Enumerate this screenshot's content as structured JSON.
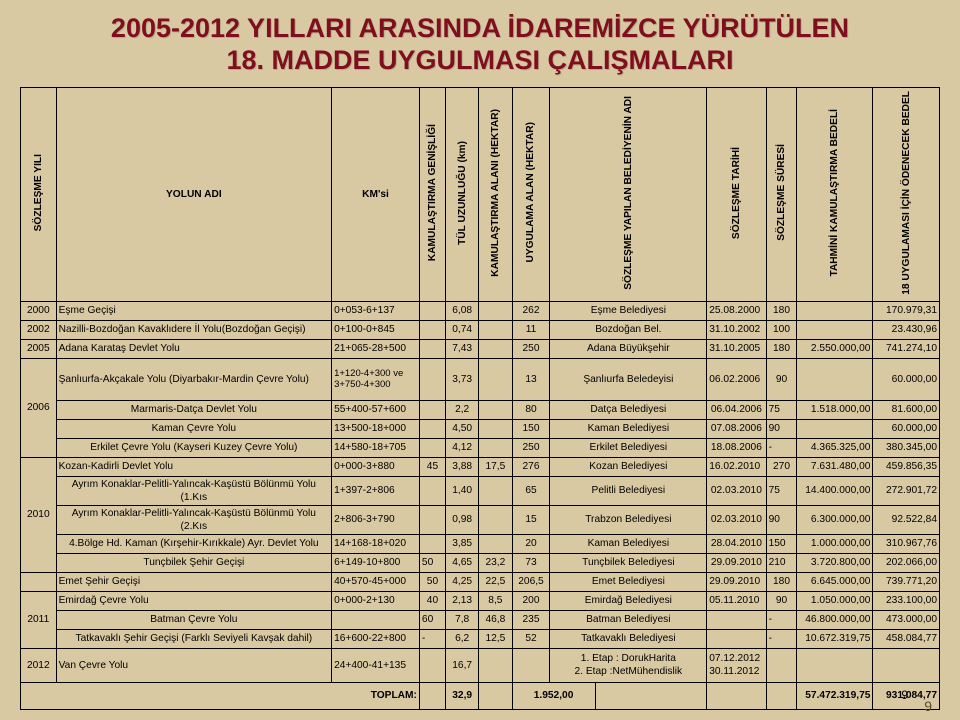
{
  "title_l1": "2005-2012 YILLARI ARASINDA İDAREMİZCE YÜRÜTÜLEN",
  "title_l2": "18. MADDE UYGULMASI ÇALIŞMALARI",
  "headers": {
    "c1": "SÖZLEŞME YILI",
    "c2": "YOLUN ADI",
    "c3": "KM'si",
    "c4": "KAMULAŞTIRMA GENİŞLİĞİ",
    "c5": "TÜL UZUNLUĞU (km)",
    "c6": "KAMULAŞTIRMA ALANI (HEKTAR)",
    "c7": "UYGULAMA ALAN (HEKTAR)",
    "c8": "SÖZLEŞME YAPILAN BELEDİYENİN ADI",
    "c9": "SÖZLEŞME TARİHİ",
    "c10": "SÖZLEŞME SÜRESİ",
    "c11": "TAHMİNİ KAMULAŞTIRMA BEDELİ",
    "c12": "18 UYGULAMASI İÇİN ÖDENECEK BEDEL"
  },
  "rows": [
    {
      "y": "2000",
      "yr": 1,
      "ad": "Eşme Geçişi",
      "km": "0+053-6+137",
      "gen": "",
      "tul": "6,08",
      "kal": "",
      "ual": "262",
      "bel": "Eşme Belediyesi",
      "tar": "25.08.2000",
      "sur": "180",
      "tkb": "",
      "bed": "170.979,31"
    },
    {
      "y": "2002",
      "yr": 1,
      "ad": "Nazilli-Bozdoğan Kavaklıdere İl Yolu(Bozdoğan Geçişi)",
      "km": "0+100-0+845",
      "gen": "",
      "tul": "0,74",
      "kal": "",
      "ual": "11",
      "bel": "Bozdoğan Bel.",
      "tar": "31.10.2002",
      "sur": "100",
      "tkb": "",
      "bed": "23.430,96"
    },
    {
      "y": "2005",
      "yr": 1,
      "ad": "Adana Karataş Devlet Yolu",
      "km": "21+065-28+500",
      "gen": "",
      "tul": "7,43",
      "kal": "",
      "ual": "250",
      "bel": "Adana Büyükşehir",
      "tar": "31.10.2005",
      "sur": "180",
      "tkb": "2.550.000,00",
      "bed": "741.274,10"
    },
    {
      "y": "2006",
      "yr": 4,
      "ad": "Şanlıurfa-Akçakale Yolu (Diyarbakır-Mardin Çevre Yolu)",
      "km": "1+120-4+300 ve 3+750-4+300",
      "gen": "",
      "tul": "3,73",
      "kal": "",
      "ual": "13",
      "bel": "Şanlıurfa Beledeyisi",
      "tar": "06.02.2006",
      "sur": "90",
      "tkb": "",
      "bed": "60.000,00"
    },
    {
      "ad": "Marmaris-Datça Devlet Yolu",
      "km": "55+400-57+600",
      "gen": "",
      "tul": "2,2",
      "kal": "",
      "ual": "80",
      "bel": "Datça Belediyesi",
      "tar": "06.04.2006",
      "sur": "75",
      "tkb": "1.518.000,00",
      "bed": "81.600,00"
    },
    {
      "ad": "Kaman Çevre Yolu",
      "km": "13+500-18+000",
      "gen": "",
      "tul": "4,50",
      "kal": "",
      "ual": "150",
      "bel": "Kaman Belediyesi",
      "tar": "07.08.2006",
      "sur": "90",
      "tkb": "",
      "bed": "60.000,00"
    },
    {
      "ad": "Erkilet Çevre Yolu (Kayseri Kuzey Çevre Yolu)",
      "km": "14+580-18+705",
      "gen": "",
      "tul": "4,12",
      "kal": "",
      "ual": "250",
      "bel": "Erkilet Belediyesi",
      "tar": "18.08.2006",
      "sur": "-",
      "tkb": "4.365.325,00",
      "bed": "380.345,00"
    },
    {
      "y": "2010",
      "yr": 5,
      "ad": "Kozan-Kadirli Devlet Yolu",
      "km": "0+000-3+880",
      "gen": "45",
      "tul": "3,88",
      "kal": "17,5",
      "ual": "276",
      "bel": "Kozan Belediyesi",
      "tar": "16.02.2010",
      "sur": "270",
      "tkb": "7.631.480,00",
      "bed": "459.856,35"
    },
    {
      "ad": "Ayrım Konaklar-Pelitli-Yalıncak-Kaşüstü Bölünmü Yolu (1.Kıs",
      "km": "1+397-2+806",
      "gen": "",
      "tul": "1,40",
      "kal": "",
      "ual": "65",
      "bel": "Pelitli Belediyesi",
      "tar": "02.03.2010",
      "sur": "75",
      "tkb": "14.400.000,00",
      "bed": "272.901,72"
    },
    {
      "ad": "Ayrım Konaklar-Pelitli-Yalıncak-Kaşüstü Bölünmü Yolu (2.Kıs",
      "km": "2+806-3+790",
      "gen": "",
      "tul": "0,98",
      "kal": "",
      "ual": "15",
      "bel": "Trabzon Belediyesi",
      "tar": "02.03.2010",
      "sur": "90",
      "tkb": "6.300.000,00",
      "bed": "92.522,84"
    },
    {
      "ad": "4.Bölge Hd. Kaman (Kırşehir-Kırıkkale) Ayr. Devlet Yolu",
      "km": "14+168-18+020",
      "gen": "",
      "tul": "3,85",
      "kal": "",
      "ual": "20",
      "bel": "Kaman Belediyesi",
      "tar": "28.04.2010",
      "sur": "150",
      "tkb": "1.000.000,00",
      "bed": "310.967,76"
    },
    {
      "ad": "Tunçbilek Şehir Geçişi",
      "km": "6+149-10+800",
      "gen": "50",
      "tul": "4,65",
      "kal": "23,2",
      "ual": "73",
      "bel": "Tunçbilek Belediyesi",
      "tar": "29.09.2010",
      "sur": "210",
      "tkb": "3.720.800,00",
      "bed": "202.066,00"
    },
    {
      "y": "",
      "yr": 1,
      "ad": "Emet Şehir Geçişi",
      "km": "40+570-45+000",
      "gen": "50",
      "tul": "4,25",
      "kal": "22,5",
      "ual": "206,5",
      "bel": "Emet Belediyesi",
      "tar": "29.09.2010",
      "sur": "180",
      "tkb": "6.645.000,00",
      "bed": "739.771,20"
    },
    {
      "y": "2011",
      "yr": 3,
      "ad": "Emirdağ Çevre Yolu",
      "km": "0+000-2+130",
      "gen": "40",
      "tul": "2,13",
      "kal": "8,5",
      "ual": "200",
      "bel": "Emirdağ Belediyesi",
      "tar": "05.11.2010",
      "sur": "90",
      "tkb": "1.050.000,00",
      "bed": "233.100,00"
    },
    {
      "ad": "Batman Çevre Yolu",
      "km": "",
      "gen": "60",
      "tul": "7,8",
      "kal": "46,8",
      "ual": "235",
      "bel": "Batman Belediyesi",
      "tar": "",
      "sur": "-",
      "tkb": "46.800.000,00",
      "bed": "473.000,00"
    },
    {
      "ad": "Tatkavaklı Şehir Geçişi (Farklı Seviyeli Kavşak dahil)",
      "km": "16+600-22+800",
      "gen": "-",
      "tul": "6,2",
      "kal": "12,5",
      "ual": "52",
      "bel": "Tatkavaklı Belediyesi",
      "tar": "",
      "sur": "-",
      "tkb": "10.672.319,75",
      "bed": "458.084,77"
    },
    {
      "y": "2012",
      "yr": 1,
      "ad": "Van Çevre Yolu",
      "km": "24+400-41+135",
      "gen": "",
      "tul": "16,7",
      "kal": "",
      "ual": "",
      "bel": "1. Etap : DorukHarita\n2. Etap :NetMühendislik",
      "tar": "07.12.2012\n30.11.2012",
      "sur": "",
      "tkb": "",
      "bed": ""
    }
  ],
  "footer": {
    "label": "TOPLAM:",
    "tul": "32,9",
    "ual": "1.952,00",
    "tkb": "57.472.319,75",
    "bed": "931.084,77"
  },
  "slidenum_a": "9",
  "slidenum_b": "9",
  "colors": {
    "bg": "#d9c9a3",
    "title": "#7f0e1e",
    "border": "#000"
  }
}
